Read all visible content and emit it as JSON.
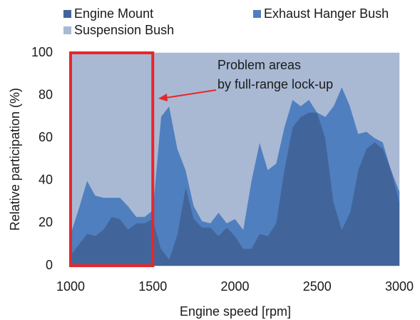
{
  "chart_data": {
    "type": "stacked_area",
    "x": [
      1000,
      1050,
      1100,
      1150,
      1200,
      1250,
      1300,
      1350,
      1400,
      1450,
      1500,
      1550,
      1600,
      1650,
      1700,
      1750,
      1800,
      1850,
      1900,
      1950,
      2000,
      2050,
      2100,
      2150,
      2200,
      2250,
      2300,
      2350,
      2400,
      2450,
      2500,
      2550,
      2600,
      2650,
      2700,
      2750,
      2800,
      2850,
      2900,
      2950,
      3000
    ],
    "series": [
      {
        "name": "Engine Mount",
        "color": "#41659a",
        "values": [
          5,
          10,
          15,
          14,
          17,
          23,
          22,
          17,
          20,
          20,
          22,
          8,
          3,
          15,
          37,
          22,
          18,
          18,
          14,
          18,
          14,
          8,
          8,
          15,
          14,
          20,
          45,
          65,
          70,
          72,
          72,
          60,
          30,
          17,
          25,
          45,
          55,
          58,
          55,
          45,
          30
        ]
      },
      {
        "name": "Exhaust Hanger Bush",
        "color": "#4f7fbf",
        "values": [
          10,
          17,
          25,
          19,
          15,
          9,
          10,
          11,
          3,
          3,
          4,
          62,
          72,
          40,
          8,
          6,
          3,
          2,
          11,
          2,
          8,
          9,
          32,
          43,
          31,
          28,
          20,
          13,
          5,
          6,
          0,
          10,
          45,
          67,
          50,
          17,
          8,
          2,
          3,
          0,
          5
        ]
      },
      {
        "name": "Suspension Bush",
        "color": "#a9b9d4",
        "values": [
          85,
          73,
          60,
          67,
          68,
          68,
          68,
          72,
          77,
          77,
          74,
          30,
          25,
          45,
          55,
          72,
          79,
          80,
          75,
          80,
          78,
          83,
          60,
          42,
          55,
          52,
          35,
          22,
          25,
          22,
          28,
          30,
          25,
          16,
          25,
          38,
          37,
          40,
          42,
          55,
          65
        ]
      }
    ],
    "xlim": [
      1000,
      3000
    ],
    "xticks": [
      1000,
      1500,
      2000,
      2500,
      3000
    ],
    "ylim": [
      0,
      100
    ],
    "yticks": [
      0,
      20,
      40,
      60,
      80,
      100
    ],
    "xlabel": "Engine speed [rpm]",
    "ylabel": "Relative participation (%)",
    "annotation": {
      "lines": [
        "Problem areas",
        "by full-range lock-up"
      ],
      "x_range": [
        1000,
        1500
      ],
      "color": "#e8262a"
    }
  }
}
